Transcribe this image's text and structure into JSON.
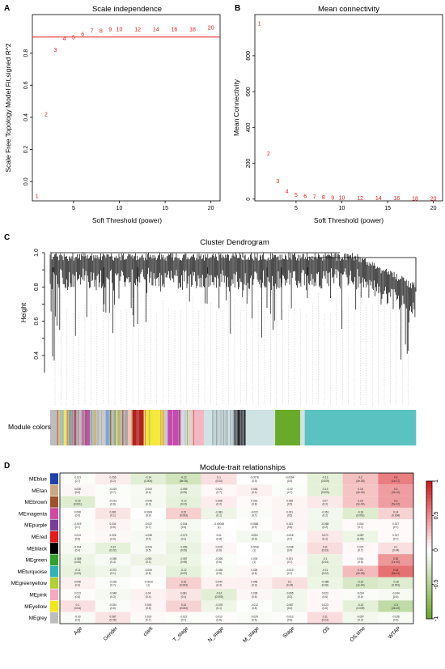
{
  "panels": [
    "A",
    "B",
    "C",
    "D"
  ],
  "chart_data": [
    {
      "type": "scatter",
      "title": "Scale independence",
      "xlabel": "Soft Threshold (power)",
      "ylabel": "Scale Free Topology Model Fit,signed R^2",
      "xlim": [
        0.5,
        21
      ],
      "ylim": [
        -0.12,
        1.04
      ],
      "x_ticks": [
        5,
        10,
        15,
        20
      ],
      "y_ticks": [
        0.0,
        0.2,
        0.4,
        0.6,
        0.8
      ],
      "hline": 0.9,
      "points": [
        {
          "x": 1,
          "y": -0.09
        },
        {
          "x": 2,
          "y": 0.42
        },
        {
          "x": 3,
          "y": 0.82
        },
        {
          "x": 4,
          "y": 0.89
        },
        {
          "x": 5,
          "y": 0.9
        },
        {
          "x": 6,
          "y": 0.92
        },
        {
          "x": 7,
          "y": 0.94
        },
        {
          "x": 8,
          "y": 0.94
        },
        {
          "x": 9,
          "y": 0.95
        },
        {
          "x": 10,
          "y": 0.95
        },
        {
          "x": 12,
          "y": 0.95
        },
        {
          "x": 14,
          "y": 0.95
        },
        {
          "x": 16,
          "y": 0.95
        },
        {
          "x": 18,
          "y": 0.95
        },
        {
          "x": 20,
          "y": 0.96
        }
      ]
    },
    {
      "type": "scatter",
      "title": "Mean connectivity",
      "xlabel": "Soft Threshold (power)",
      "ylabel": "Mean Connectivity",
      "xlim": [
        0.5,
        21
      ],
      "ylim": [
        -10,
        1030
      ],
      "x_ticks": [
        5,
        10,
        15,
        20
      ],
      "y_ticks": [
        0,
        200,
        400,
        600,
        800
      ],
      "points": [
        {
          "x": 1,
          "y": 980
        },
        {
          "x": 2,
          "y": 255
        },
        {
          "x": 3,
          "y": 100
        },
        {
          "x": 4,
          "y": 45
        },
        {
          "x": 5,
          "y": 25
        },
        {
          "x": 6,
          "y": 17
        },
        {
          "x": 7,
          "y": 12
        },
        {
          "x": 8,
          "y": 10
        },
        {
          "x": 9,
          "y": 8
        },
        {
          "x": 10,
          "y": 7
        },
        {
          "x": 12,
          "y": 6
        },
        {
          "x": 14,
          "y": 5
        },
        {
          "x": 16,
          "y": 5
        },
        {
          "x": 18,
          "y": 4
        },
        {
          "x": 20,
          "y": 4
        }
      ]
    },
    {
      "type": "dendrogram",
      "title": "Cluster Dendrogram",
      "ylabel": "Height",
      "ylim": [
        0.3,
        1.0
      ],
      "y_ticks": [
        0.4,
        0.5,
        0.6,
        0.7,
        0.8,
        0.9,
        1.0
      ],
      "colorbar_label": "Module colors",
      "color_blocks": [
        {
          "color": "#bdbdbd",
          "width": 8
        },
        {
          "color": "#d9c07a",
          "width": 3
        },
        {
          "color": "#8fb3d9",
          "width": 3
        },
        {
          "color": "#f2e35a",
          "width": 4
        },
        {
          "color": "#9aa3a8",
          "width": 8
        },
        {
          "color": "#a0522d",
          "width": 2
        },
        {
          "color": "#bdbdbd",
          "width": 6
        },
        {
          "color": "#b05ab0",
          "width": 9
        },
        {
          "color": "#bdbdbd",
          "width": 4
        },
        {
          "color": "#c9b87a",
          "width": 3
        },
        {
          "color": "#c9c9c9",
          "width": 10
        },
        {
          "color": "#7aa6d9",
          "width": 4
        },
        {
          "color": "#bdbdbd",
          "width": 9
        },
        {
          "color": "#d9c07a",
          "width": 3
        },
        {
          "color": "#a8a8a8",
          "width": 8
        },
        {
          "color": "#e8c4c4",
          "width": 4
        },
        {
          "color": "#b22222",
          "width": 13
        },
        {
          "color": "#f5e93e",
          "width": 22
        },
        {
          "color": "#c9c9c9",
          "width": 4
        },
        {
          "color": "#c54ab0",
          "width": 14
        },
        {
          "color": "#d9d9d9",
          "width": 12
        },
        {
          "color": "#f4b6c2",
          "width": 13
        },
        {
          "color": "#cfe3e3",
          "width": 32
        },
        {
          "color": "#000000",
          "width": 13
        },
        {
          "color": "#cfe3e3",
          "width": 32
        },
        {
          "color": "#6aaa2a",
          "width": 27
        },
        {
          "color": "#cfe3e3",
          "width": 5
        },
        {
          "color": "#5bc2c2",
          "width": 120
        }
      ]
    },
    {
      "type": "heatmap",
      "title": "Module-trait relationships",
      "rows": [
        "MEblue",
        "MEtan",
        "MEbrown",
        "MEmagenta",
        "MEpurple",
        "MEred",
        "MEblack",
        "MEgreen",
        "MEturquoise",
        "MEgreenyellow",
        "MEpink",
        "MEyellow",
        "MEgrey"
      ],
      "row_colors": [
        "#1f3faa",
        "#c9a982",
        "#a0522d",
        "#d048a0",
        "#7a3d9a",
        "#e41a1c",
        "#000000",
        "#33a02c",
        "#2fb3b3",
        "#b0d030",
        "#f4a9c0",
        "#f2e61a",
        "#bdbdbd"
      ],
      "columns": [
        "Age",
        "Gender",
        "clark",
        "T_stage",
        "N_stage",
        "M_stage",
        "Stage",
        "OS",
        "OS.time",
        "WTAP"
      ],
      "values": [
        [
          -0.021,
          0.056,
          -0.14,
          -0.22,
          0.1,
          -0.0078,
          -0.0064,
          -0.13,
          0.2,
          0.4
        ],
        [
          0.028,
          -0.019,
          -0.043,
          -0.099,
          0.022,
          0.046,
          -0.02,
          -0.13,
          0.18,
          0.3
        ],
        [
          -0.16,
          -0.013,
          -0.048,
          -0.12,
          0.058,
          0.016,
          0.035,
          0.07,
          0.18,
          0.3
        ],
        [
          0.008,
          0.081,
          0.0043,
          0.15,
          -0.081,
          -0.022,
          0.031,
          -0.061,
          -0.16,
          0.14
        ],
        [
          -0.019,
          0.034,
          -0.022,
          -0.044,
          -0.00048,
          0.0088,
          0.031,
          -0.065,
          0.016,
          0.017
        ],
        [
          0.013,
          0.026,
          -0.038,
          -0.073,
          0.01,
          -0.051,
          -0.018,
          0.071,
          -0.087,
          0.017
        ],
        [
          -0.044,
          -0.12,
          -0.034,
          -0.099,
          0.029,
          -0.0008,
          -0.038,
          0.11,
          0.021,
          0.1
        ],
        [
          -0.088,
          -0.038,
          -0.081,
          -0.087,
          -0.026,
          0.003,
          0.021,
          -0.1,
          0.014,
          0.32
        ],
        [
          -0.11,
          -0.072,
          -0.034,
          -0.12,
          -0.036,
          0.026,
          -0.019,
          -0.11,
          0.21,
          0.44
        ],
        [
          0.048,
          -0.018,
          -0.0023,
          0.15,
          0.044,
          0.048,
          0.1,
          -0.088,
          -0.19,
          -0.16
        ],
        [
          0.013,
          -0.048,
          0.04,
          0.081,
          -0.14,
          0.028,
          -0.065,
          0.023,
          -0.024,
          -0.044
        ],
        [
          0.1,
          -0.024,
          0.033,
          0.14,
          -0.078,
          -0.012,
          -0.067,
          0.023,
          -0.13,
          -0.3
        ],
        [
          -0.03,
          0.087,
          0.019,
          -0.022,
          0.013,
          -0.029,
          -0.013,
          0.11,
          -0.057,
          -0.036
        ]
      ],
      "pvalues": [
        [
          "(0.7)",
          "(0.2)",
          "(0.004)",
          "(8e-06)",
          "(0.04)",
          "(0.9)",
          "(0.9)",
          "(0.009)",
          "(4e-05)",
          "(1e-17)"
        ],
        [
          "(0.6)",
          "(0.7)",
          "(0.4)",
          "(0.05)",
          "(0.7)",
          "(0.4)",
          "(0.7)",
          "(0.009)",
          "(4e-04)",
          "(3e-10)"
        ],
        [
          "(0.001)",
          "(0.8)",
          "(0.3)",
          "(0.02)",
          "(0.2)",
          "(0.8)",
          "(0.5)",
          "(0.2)",
          "(2e-04)",
          "(5e-10)"
        ],
        [
          "(0.9)",
          "(0.1)",
          "(0.9)",
          "(0.003)",
          "(0.1)",
          "(0.7)",
          "(0.5)",
          "(0.2)",
          "(0.001)",
          "(0.004)"
        ],
        [
          "(0.7)",
          "(0.5)",
          "(0.7)",
          "(0.4)",
          "(1)",
          "(0.9)",
          "(0.5)",
          "(0.2)",
          "(0.7)",
          "(0.7)"
        ],
        [
          "(0.8)",
          "(0.6)",
          "(0.4)",
          "(0.1)",
          "(0.8)",
          "(0.3)",
          "(0.7)",
          "(0.2)",
          "(0.08)",
          "(0.7)"
        ],
        [
          "(0.4)",
          "(0.02)",
          "(0.5)",
          "(0.05)",
          "(0.6)",
          "(1)",
          "(0.4)",
          "(0.03)",
          "(0.7)",
          "(0.04)"
        ],
        [
          "(0.08)",
          "(0.4)",
          "(0.1)",
          "(0.08)",
          "(0.6)",
          "(1)",
          "(0.7)",
          "(0.04)",
          "(0.8)",
          "(1e-10)"
        ],
        [
          "(0.03)",
          "(0.1)",
          "(0.5)",
          "(0.02)",
          "(0.5)",
          "(0.6)",
          "(0.7)",
          "(0.02)",
          "(2e-05)",
          "(5e-21)"
        ],
        [
          "(0.3)",
          "(0.7)",
          "(1)",
          "(0.003)",
          "(0.4)",
          "(0.3)",
          "(0.04)",
          "(0.08)",
          "(1e-04)",
          "(0.001)"
        ],
        [
          "(0.8)",
          "(0.3)",
          "(0.4)",
          "(0.1)",
          "(0.005)",
          "(0.6)",
          "(0.2)",
          "(0.6)",
          "(0.6)",
          "(0.4)"
        ],
        [
          "(0.04)",
          "(0.6)",
          "(0.5)",
          "(0.004)",
          "(0.1)",
          "(0.8)",
          "(0.2)",
          "(0.6)",
          "(0.009)",
          "(4e-10)"
        ],
        [
          "(0.5)",
          "(0.08)",
          "(0.7)",
          "(0.7)",
          "(0.8)",
          "(0.6)",
          "(0.8)",
          "(0.03)",
          "(0.3)",
          "(0.5)"
        ]
      ],
      "color_scale": {
        "min": -1,
        "max": 1,
        "low": "#6aaa2a",
        "mid": "#ffffff",
        "high": "#d7191c"
      },
      "scale_ticks": [
        "-1",
        "-0.5",
        "0",
        "0.5",
        "1"
      ]
    }
  ]
}
